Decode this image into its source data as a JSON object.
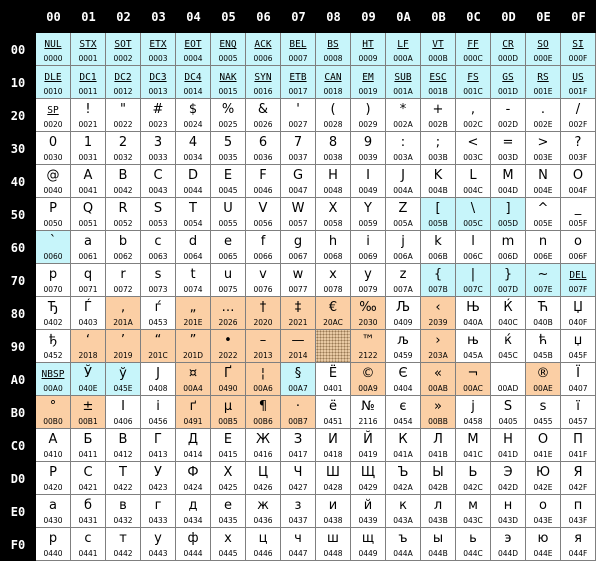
{
  "column_headers": [
    "00",
    "01",
    "02",
    "03",
    "04",
    "05",
    "06",
    "07",
    "08",
    "09",
    "0A",
    "0B",
    "0C",
    "0D",
    "0E",
    "0F"
  ],
  "row_headers": [
    "00",
    "10",
    "20",
    "30",
    "40",
    "50",
    "60",
    "70",
    "80",
    "90",
    "A0",
    "B0",
    "C0",
    "D0",
    "E0",
    "F0"
  ],
  "colors": {
    "control": "#c7f5fa",
    "differs": "#fbcfa5",
    "unassigned": "#e8c9a3",
    "header": "#000000"
  },
  "rows": [
    [
      [
        "NUL",
        "0000",
        "c"
      ],
      [
        "STX",
        "0001",
        "c"
      ],
      [
        "SOT",
        "0002",
        "c"
      ],
      [
        "ETX",
        "0003",
        "c"
      ],
      [
        "EOT",
        "0004",
        "c"
      ],
      [
        "ENQ",
        "0005",
        "c"
      ],
      [
        "ACK",
        "0006",
        "c"
      ],
      [
        "BEL",
        "0007",
        "c"
      ],
      [
        "BS",
        "0008",
        "c"
      ],
      [
        "HT",
        "0009",
        "c"
      ],
      [
        "LF",
        "000A",
        "c"
      ],
      [
        "VT",
        "000B",
        "c"
      ],
      [
        "FF",
        "000C",
        "c"
      ],
      [
        "CR",
        "000D",
        "c"
      ],
      [
        "SO",
        "000E",
        "c"
      ],
      [
        "SI",
        "000F",
        "c"
      ]
    ],
    [
      [
        "DLE",
        "0010",
        "c"
      ],
      [
        "DC1",
        "0011",
        "c"
      ],
      [
        "DC2",
        "0012",
        "c"
      ],
      [
        "DC3",
        "0013",
        "c"
      ],
      [
        "DC4",
        "0014",
        "c"
      ],
      [
        "NAK",
        "0015",
        "c"
      ],
      [
        "SYN",
        "0016",
        "c"
      ],
      [
        "ETB",
        "0017",
        "c"
      ],
      [
        "CAN",
        "0018",
        "c"
      ],
      [
        "EM",
        "0019",
        "c"
      ],
      [
        "SUB",
        "001A",
        "c"
      ],
      [
        "ESC",
        "001B",
        "c"
      ],
      [
        "FS",
        "001C",
        "c"
      ],
      [
        "GS",
        "001D",
        "c"
      ],
      [
        "RS",
        "001E",
        "c"
      ],
      [
        "US",
        "001F",
        "c"
      ]
    ],
    [
      [
        "SP",
        "0020",
        "a"
      ],
      [
        "!",
        "0021",
        ""
      ],
      [
        "\"",
        "0022",
        ""
      ],
      [
        "#",
        "0023",
        ""
      ],
      [
        "$",
        "0024",
        ""
      ],
      [
        "%",
        "0025",
        ""
      ],
      [
        "&",
        "0026",
        ""
      ],
      [
        "'",
        "0027",
        ""
      ],
      [
        "(",
        "0028",
        ""
      ],
      [
        ")",
        "0029",
        ""
      ],
      [
        "*",
        "002A",
        ""
      ],
      [
        "+",
        "002B",
        ""
      ],
      [
        ",",
        "002C",
        ""
      ],
      [
        "-",
        "002D",
        ""
      ],
      [
        ".",
        "002E",
        ""
      ],
      [
        "/",
        "002F",
        ""
      ]
    ],
    [
      [
        "0",
        "0030",
        ""
      ],
      [
        "1",
        "0031",
        ""
      ],
      [
        "2",
        "0032",
        ""
      ],
      [
        "3",
        "0033",
        ""
      ],
      [
        "4",
        "0034",
        ""
      ],
      [
        "5",
        "0035",
        ""
      ],
      [
        "6",
        "0036",
        ""
      ],
      [
        "7",
        "0037",
        ""
      ],
      [
        "8",
        "0038",
        ""
      ],
      [
        "9",
        "0039",
        ""
      ],
      [
        ":",
        "003A",
        ""
      ],
      [
        ";",
        "003B",
        ""
      ],
      [
        "<",
        "003C",
        ""
      ],
      [
        "=",
        "003D",
        ""
      ],
      [
        ">",
        "003E",
        ""
      ],
      [
        "?",
        "003F",
        ""
      ]
    ],
    [
      [
        "@",
        "0040",
        ""
      ],
      [
        "A",
        "0041",
        ""
      ],
      [
        "B",
        "0042",
        ""
      ],
      [
        "C",
        "0043",
        ""
      ],
      [
        "D",
        "0044",
        ""
      ],
      [
        "E",
        "0045",
        ""
      ],
      [
        "F",
        "0046",
        ""
      ],
      [
        "G",
        "0047",
        ""
      ],
      [
        "H",
        "0048",
        ""
      ],
      [
        "I",
        "0049",
        ""
      ],
      [
        "J",
        "004A",
        ""
      ],
      [
        "K",
        "004B",
        ""
      ],
      [
        "L",
        "004C",
        ""
      ],
      [
        "M",
        "004D",
        ""
      ],
      [
        "N",
        "004E",
        ""
      ],
      [
        "O",
        "004F",
        ""
      ]
    ],
    [
      [
        "P",
        "0050",
        ""
      ],
      [
        "Q",
        "0051",
        ""
      ],
      [
        "R",
        "0052",
        ""
      ],
      [
        "S",
        "0053",
        ""
      ],
      [
        "T",
        "0054",
        ""
      ],
      [
        "U",
        "0055",
        ""
      ],
      [
        "V",
        "0056",
        ""
      ],
      [
        "W",
        "0057",
        ""
      ],
      [
        "X",
        "0058",
        ""
      ],
      [
        "Y",
        "0059",
        ""
      ],
      [
        "Z",
        "005A",
        ""
      ],
      [
        "[",
        "005B",
        "c"
      ],
      [
        "\\",
        "005C",
        "c"
      ],
      [
        "]",
        "005D",
        "c"
      ],
      [
        "^",
        "005E",
        ""
      ],
      [
        "_",
        "005F",
        ""
      ]
    ],
    [
      [
        "`",
        "0060",
        "c"
      ],
      [
        "a",
        "0061",
        ""
      ],
      [
        "b",
        "0062",
        ""
      ],
      [
        "c",
        "0063",
        ""
      ],
      [
        "d",
        "0064",
        ""
      ],
      [
        "e",
        "0065",
        ""
      ],
      [
        "f",
        "0066",
        ""
      ],
      [
        "g",
        "0067",
        ""
      ],
      [
        "h",
        "0068",
        ""
      ],
      [
        "i",
        "0069",
        ""
      ],
      [
        "j",
        "006A",
        ""
      ],
      [
        "k",
        "006B",
        ""
      ],
      [
        "l",
        "006C",
        ""
      ],
      [
        "m",
        "006D",
        ""
      ],
      [
        "n",
        "006E",
        ""
      ],
      [
        "o",
        "006F",
        ""
      ]
    ],
    [
      [
        "p",
        "0070",
        ""
      ],
      [
        "q",
        "0071",
        ""
      ],
      [
        "r",
        "0072",
        ""
      ],
      [
        "s",
        "0073",
        ""
      ],
      [
        "t",
        "0074",
        ""
      ],
      [
        "u",
        "0075",
        ""
      ],
      [
        "v",
        "0076",
        ""
      ],
      [
        "w",
        "0077",
        ""
      ],
      [
        "x",
        "0078",
        ""
      ],
      [
        "y",
        "0079",
        ""
      ],
      [
        "z",
        "007A",
        ""
      ],
      [
        "{",
        "007B",
        "c"
      ],
      [
        "|",
        "007C",
        "c"
      ],
      [
        "}",
        "007D",
        "c"
      ],
      [
        "~",
        "007E",
        "c"
      ],
      [
        "DEL",
        "007F",
        "ca"
      ]
    ],
    [
      [
        "Ђ",
        "0402",
        ""
      ],
      [
        "Ѓ",
        "0403",
        ""
      ],
      [
        "‚",
        "201A",
        "o"
      ],
      [
        "ѓ",
        "0453",
        ""
      ],
      [
        "„",
        "201E",
        "o"
      ],
      [
        "…",
        "2026",
        "o"
      ],
      [
        "†",
        "2020",
        "o"
      ],
      [
        "‡",
        "2021",
        "o"
      ],
      [
        "€",
        "20AC",
        "o"
      ],
      [
        "‰",
        "2030",
        "o"
      ],
      [
        "Љ",
        "0409",
        ""
      ],
      [
        "‹",
        "2039",
        "o"
      ],
      [
        "Њ",
        "040A",
        ""
      ],
      [
        "Ќ",
        "040C",
        ""
      ],
      [
        "Ћ",
        "040B",
        ""
      ],
      [
        "Џ",
        "040F",
        ""
      ]
    ],
    [
      [
        "ђ",
        "0452",
        ""
      ],
      [
        "‘",
        "2018",
        "o"
      ],
      [
        "’",
        "2019",
        "o"
      ],
      [
        "“",
        "201C",
        "o"
      ],
      [
        "”",
        "201D",
        "o"
      ],
      [
        "•",
        "2022",
        "o"
      ],
      [
        "–",
        "2013",
        "o"
      ],
      [
        "—",
        "2014",
        "o"
      ],
      [
        "",
        "",
        "e"
      ],
      [
        "™",
        "2122",
        "o"
      ],
      [
        "љ",
        "0459",
        ""
      ],
      [
        "›",
        "203A",
        "o"
      ],
      [
        "њ",
        "045A",
        ""
      ],
      [
        "ќ",
        "045C",
        ""
      ],
      [
        "ћ",
        "045B",
        ""
      ],
      [
        "џ",
        "045F",
        ""
      ]
    ],
    [
      [
        "NBSP",
        "00A0",
        "ca"
      ],
      [
        "Ў",
        "040E",
        "c"
      ],
      [
        "ў",
        "045E",
        "c"
      ],
      [
        "Ј",
        "0408",
        ""
      ],
      [
        "¤",
        "00A4",
        "o"
      ],
      [
        "Ґ",
        "0490",
        "o"
      ],
      [
        "¦",
        "00A6",
        "o"
      ],
      [
        "§",
        "00A7",
        "c"
      ],
      [
        "Ё",
        "0401",
        ""
      ],
      [
        "©",
        "00A9",
        "o"
      ],
      [
        "Є",
        "0404",
        ""
      ],
      [
        "«",
        "00AB",
        "o"
      ],
      [
        "¬",
        "00AC",
        "o"
      ],
      [
        "",
        "00AD",
        ""
      ],
      [
        "®",
        "00AE",
        "o"
      ],
      [
        "Ї",
        "0407",
        ""
      ]
    ],
    [
      [
        "°",
        "00B0",
        "o"
      ],
      [
        "±",
        "00B1",
        "o"
      ],
      [
        "І",
        "0406",
        ""
      ],
      [
        "і",
        "0456",
        ""
      ],
      [
        "ґ",
        "0491",
        "o"
      ],
      [
        "µ",
        "00B5",
        "o"
      ],
      [
        "¶",
        "00B6",
        "o"
      ],
      [
        "·",
        "00B7",
        "o"
      ],
      [
        "ё",
        "0451",
        ""
      ],
      [
        "№",
        "2116",
        ""
      ],
      [
        "є",
        "0454",
        ""
      ],
      [
        "»",
        "00BB",
        "o"
      ],
      [
        "ј",
        "0458",
        ""
      ],
      [
        "Ѕ",
        "0405",
        ""
      ],
      [
        "ѕ",
        "0455",
        ""
      ],
      [
        "ї",
        "0457",
        ""
      ]
    ],
    [
      [
        "А",
        "0410",
        ""
      ],
      [
        "Б",
        "0411",
        ""
      ],
      [
        "В",
        "0412",
        ""
      ],
      [
        "Г",
        "0413",
        ""
      ],
      [
        "Д",
        "0414",
        ""
      ],
      [
        "Е",
        "0415",
        ""
      ],
      [
        "Ж",
        "0416",
        ""
      ],
      [
        "З",
        "0417",
        ""
      ],
      [
        "И",
        "0418",
        ""
      ],
      [
        "Й",
        "0419",
        ""
      ],
      [
        "К",
        "041A",
        ""
      ],
      [
        "Л",
        "041B",
        ""
      ],
      [
        "М",
        "041C",
        ""
      ],
      [
        "Н",
        "041D",
        ""
      ],
      [
        "О",
        "041E",
        ""
      ],
      [
        "П",
        "041F",
        ""
      ]
    ],
    [
      [
        "Р",
        "0420",
        ""
      ],
      [
        "С",
        "0421",
        ""
      ],
      [
        "Т",
        "0422",
        ""
      ],
      [
        "У",
        "0423",
        ""
      ],
      [
        "Ф",
        "0424",
        ""
      ],
      [
        "Х",
        "0425",
        ""
      ],
      [
        "Ц",
        "0426",
        ""
      ],
      [
        "Ч",
        "0427",
        ""
      ],
      [
        "Ш",
        "0428",
        ""
      ],
      [
        "Щ",
        "0429",
        ""
      ],
      [
        "Ъ",
        "042A",
        ""
      ],
      [
        "Ы",
        "042B",
        ""
      ],
      [
        "Ь",
        "042C",
        ""
      ],
      [
        "Э",
        "042D",
        ""
      ],
      [
        "Ю",
        "042E",
        ""
      ],
      [
        "Я",
        "042F",
        ""
      ]
    ],
    [
      [
        "а",
        "0430",
        ""
      ],
      [
        "б",
        "0431",
        ""
      ],
      [
        "в",
        "0432",
        ""
      ],
      [
        "г",
        "0433",
        ""
      ],
      [
        "д",
        "0434",
        ""
      ],
      [
        "е",
        "0435",
        ""
      ],
      [
        "ж",
        "0436",
        ""
      ],
      [
        "з",
        "0437",
        ""
      ],
      [
        "и",
        "0438",
        ""
      ],
      [
        "й",
        "0439",
        ""
      ],
      [
        "к",
        "043A",
        ""
      ],
      [
        "л",
        "043B",
        ""
      ],
      [
        "м",
        "043C",
        ""
      ],
      [
        "н",
        "043D",
        ""
      ],
      [
        "о",
        "043E",
        ""
      ],
      [
        "п",
        "043F",
        ""
      ]
    ],
    [
      [
        "р",
        "0440",
        ""
      ],
      [
        "с",
        "0441",
        ""
      ],
      [
        "т",
        "0442",
        ""
      ],
      [
        "у",
        "0443",
        ""
      ],
      [
        "ф",
        "0444",
        ""
      ],
      [
        "х",
        "0445",
        ""
      ],
      [
        "ц",
        "0446",
        ""
      ],
      [
        "ч",
        "0447",
        ""
      ],
      [
        "ш",
        "0448",
        ""
      ],
      [
        "щ",
        "0449",
        ""
      ],
      [
        "ъ",
        "044A",
        ""
      ],
      [
        "ы",
        "044B",
        ""
      ],
      [
        "ь",
        "044C",
        ""
      ],
      [
        "э",
        "044D",
        ""
      ],
      [
        "ю",
        "044E",
        ""
      ],
      [
        "я",
        "044F",
        ""
      ]
    ]
  ]
}
